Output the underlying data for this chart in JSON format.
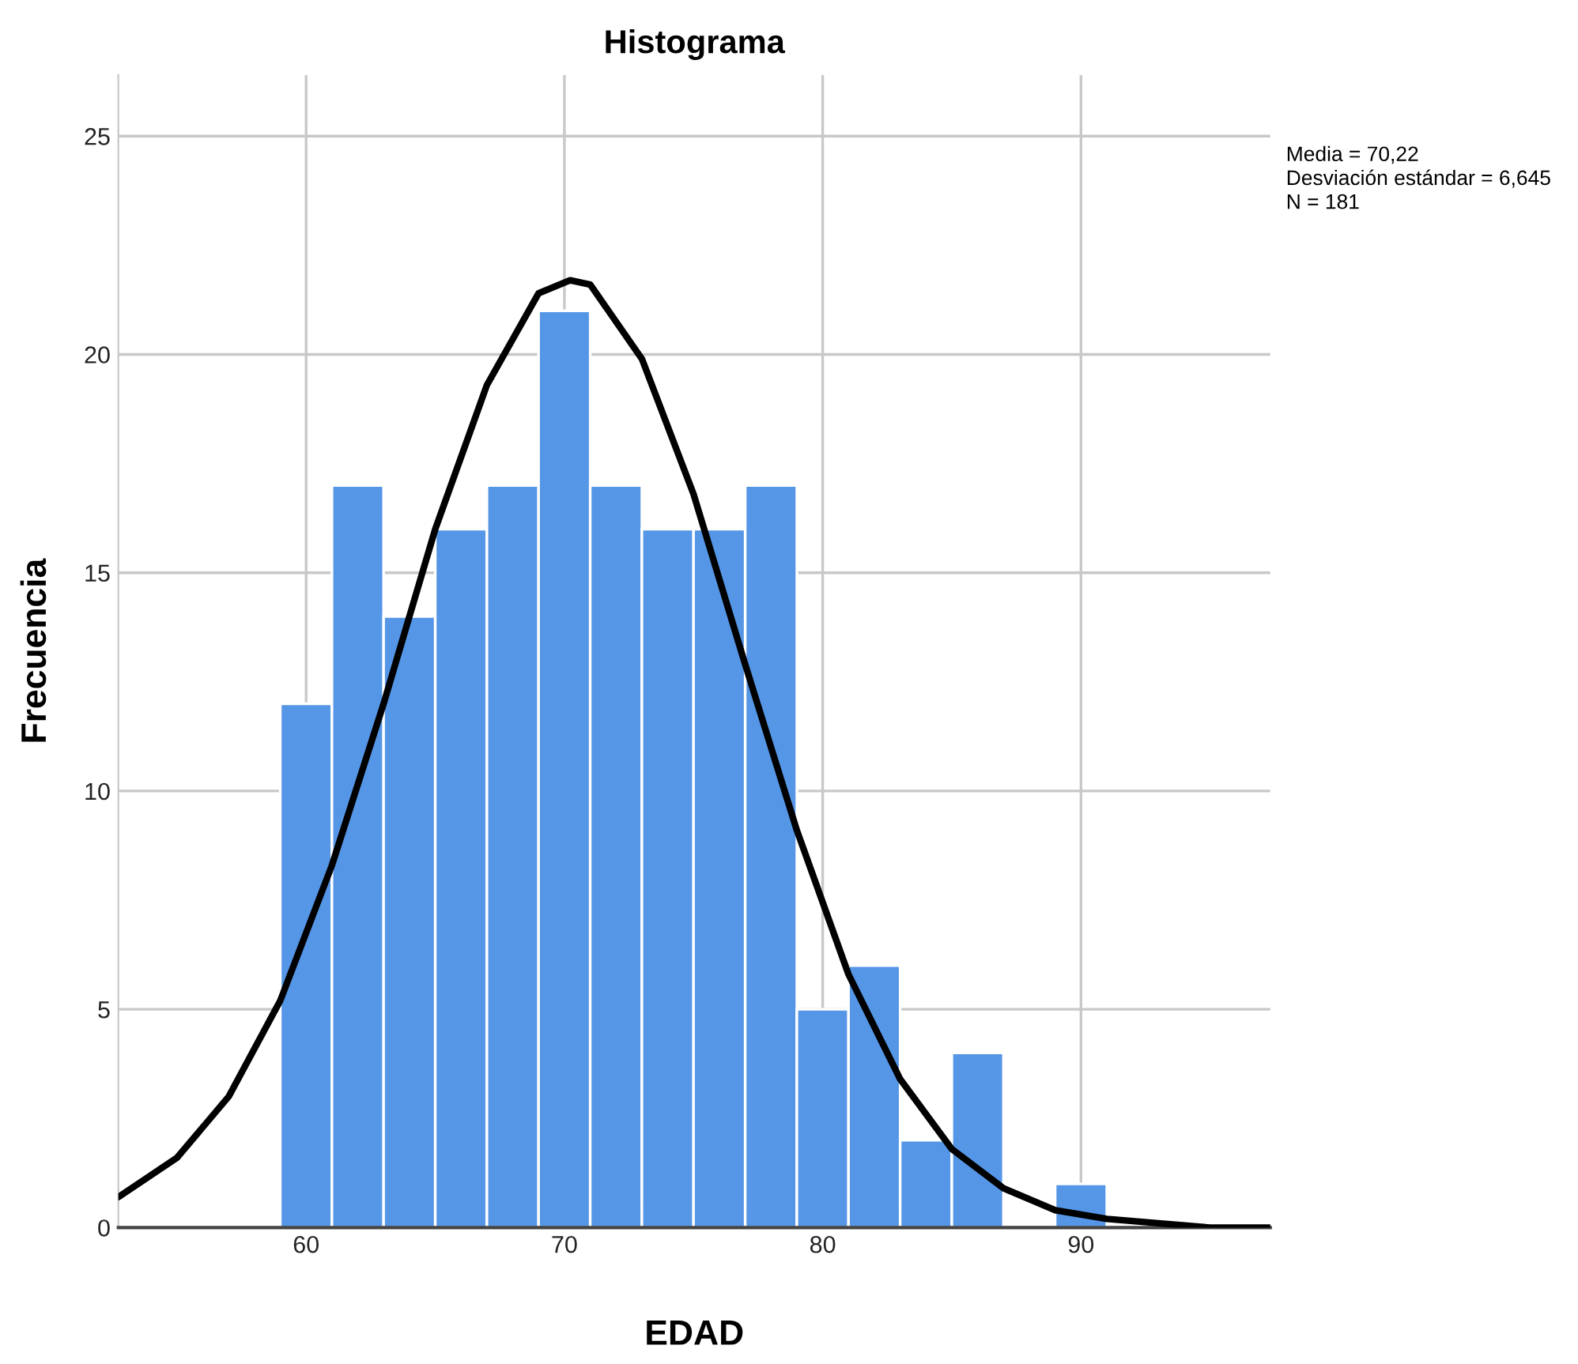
{
  "chart_data": {
    "type": "histogram",
    "title": "Histograma",
    "xlabel": "EDAD",
    "ylabel": "Frecuencia",
    "bins": [
      59,
      61,
      63,
      65,
      67,
      69,
      71,
      73,
      75,
      77,
      79,
      81,
      83,
      85,
      87,
      89,
      91
    ],
    "values": [
      12,
      17,
      14,
      16,
      17,
      21,
      17,
      16,
      16,
      17,
      5,
      6,
      2,
      4,
      0,
      1
    ],
    "color": "#5596e6",
    "series": [
      {
        "type": "line",
        "color": "#000000",
        "x": [
          52.73,
          55,
          57,
          59,
          61,
          63,
          65,
          67,
          69,
          70.22,
          71,
          73,
          75,
          77,
          79,
          81,
          83,
          85,
          87,
          89,
          91,
          93,
          95,
          97.33
        ],
        "values": [
          0.7,
          1.6,
          3.0,
          5.2,
          8.3,
          12.0,
          16.0,
          19.3,
          21.4,
          21.7,
          21.6,
          19.9,
          16.8,
          12.9,
          9.1,
          5.8,
          3.4,
          1.8,
          0.9,
          0.4,
          0.2,
          0.1,
          0.0,
          0.0
        ]
      }
    ],
    "xlim": [
      52.73,
      97.33
    ],
    "ylim": [
      0,
      26.4
    ],
    "xticks": [
      60,
      70,
      80,
      90
    ],
    "yticks": [
      0,
      5,
      10,
      15,
      20,
      25
    ],
    "grid": true,
    "annotations": [
      "Media = 70,22",
      "Desviación estándar = 6,645",
      "N = 181"
    ]
  }
}
